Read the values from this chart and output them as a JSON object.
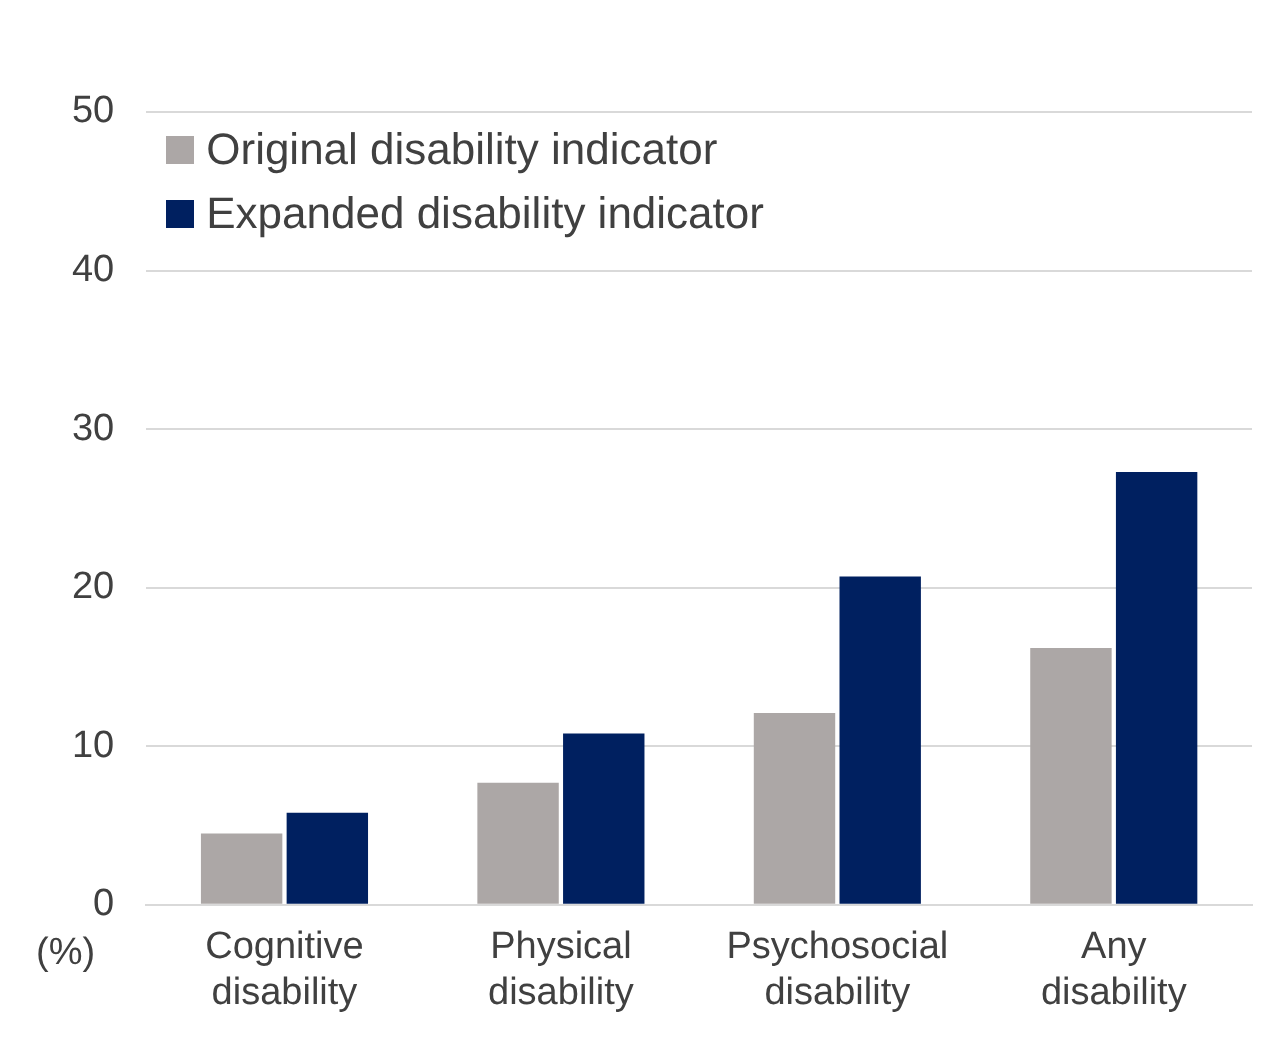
{
  "chart_data": {
    "type": "bar",
    "ylabel": "(%)",
    "categories": [
      "Cognitive\ndisability",
      "Physical\ndisability",
      "Psychosocial\ndisability",
      "Any\ndisability"
    ],
    "series": [
      {
        "name": "Original disability indicator",
        "color": "#aca7a6",
        "values": [
          4.5,
          7.7,
          12.1,
          16.2
        ]
      },
      {
        "name": "Expanded disability indicator",
        "color": "#002060",
        "values": [
          5.8,
          10.8,
          20.7,
          27.3
        ]
      }
    ],
    "ylim": [
      0,
      50
    ],
    "yticks": [
      0,
      10,
      20,
      30,
      40,
      50
    ],
    "grid": "y",
    "legend": "top left"
  }
}
